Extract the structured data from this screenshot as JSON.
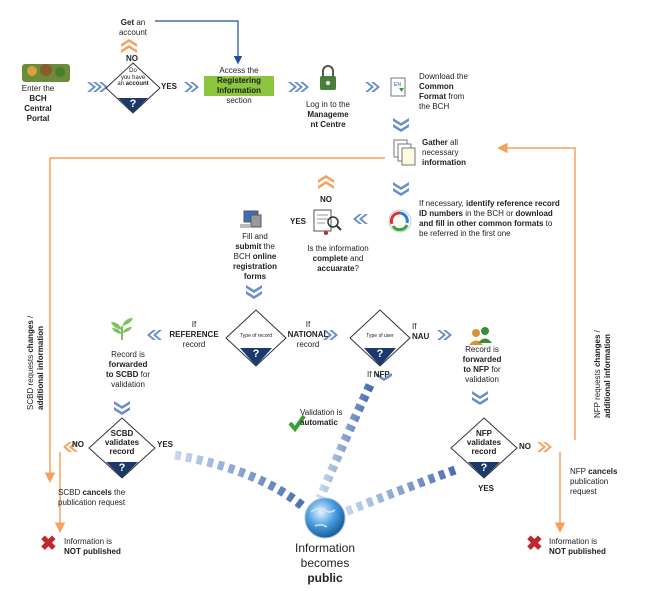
{
  "steps": {
    "enter_portal": {
      "l1": "Enter the",
      "l2": "BCH",
      "l3": "Central",
      "l4": "Portal"
    },
    "get_account": {
      "bold": "Get",
      "rest": " an",
      "l2": "account"
    },
    "have_account": {
      "l1": "Do",
      "l2": "you have",
      "l3": "an ",
      "l3b": "account",
      "q": "?"
    },
    "access_reg": {
      "l1": "Access the",
      "hl": "Registering Information",
      "l3": "section"
    },
    "login": {
      "l1": "Log in to the",
      "l2": "Manageme",
      "l3": "nt Centre"
    },
    "download_cf": {
      "l1": "Download the",
      "l2": "Common",
      "l3": "Format",
      "l3b": " from",
      "l4": "the BCH"
    },
    "gather": {
      "bold1": "Gather",
      "rest1": " all",
      "l2": "necessary",
      "l3": "information"
    },
    "identify": {
      "l1a": "If necessary, ",
      "l1b": "identify reference record",
      "l2": "ID numbers",
      "l2b": " in the BCH or ",
      "l2c": "download",
      "l3": "and fill in other common formats",
      "l3b": " to",
      "l4": "be referred in the first one"
    },
    "complete": {
      "l1": "Is the information",
      "l2": "complete",
      "l2b": " and",
      "l3": "accuarate",
      "l3b": "?"
    },
    "fill_submit": {
      "l1": "Fill and",
      "l2": "submit",
      "l2b": " the",
      "l3": "BCH ",
      "l3b": "online",
      "l4": "registration",
      "l5": "forms"
    },
    "type_record": {
      "label": "Type of record",
      "q": "?"
    },
    "type_user": {
      "label": "Type of user",
      "q": "?"
    },
    "if_reference": {
      "l1": "If",
      "l2": "REFERENCE",
      "l3": "record"
    },
    "if_national": {
      "l1": "If",
      "l2": "NATIONAL",
      "l3": "record"
    },
    "if_nau": {
      "l1": "If",
      "l2": "NAU"
    },
    "if_nfp": {
      "l1": "If ",
      "l2": "NFP"
    },
    "fwd_scbd": {
      "l1": "Record is",
      "l2": "forwarded",
      "l3": "to SCBD",
      "l3b": " for",
      "l4": "validation"
    },
    "fwd_nfp": {
      "l1": "Record is",
      "l2": "forwarded",
      "l3": "to NFP",
      "l3b": " for",
      "l4": "validation"
    },
    "validation_auto": {
      "l1": "Validation is",
      "l2": "automatic"
    },
    "scbd_validates": {
      "l1": "SCBD",
      "l2": "validates",
      "l3": "record",
      "q": "?"
    },
    "nfp_validates": {
      "l1": "NFP",
      "l2": "validates",
      "l3": "record",
      "q": "?"
    },
    "scbd_cancels": {
      "l1a": "SCBD ",
      "l1b": "cancels",
      "l1c": " the",
      "l2": "publication request"
    },
    "nfp_cancels": {
      "l1a": "NFP ",
      "l1b": "cancels",
      "l2": "publication",
      "l3": "request"
    },
    "scbd_requests": {
      "a": "SCBD requests ",
      "b": "changes",
      "c": " /",
      "d": "additional information"
    },
    "nfp_requests": {
      "a": "NFP requests ",
      "b": "changes",
      "c": " /",
      "d": "additional information"
    },
    "not_published_left": {
      "l1": "Information is",
      "l2": "NOT published"
    },
    "not_published_right": {
      "l1": "Information is",
      "l2": "NOT published"
    },
    "public": {
      "l1": "Information",
      "l2": "becomes",
      "l3": "public"
    }
  },
  "labels": {
    "yes": "YES",
    "no": "NO"
  },
  "icons": {
    "x": "✖",
    "check": "✔"
  },
  "colors": {
    "navy": "#1b3a6b",
    "orange": "#f5a25d",
    "arrow_blue": "#6a8fc8",
    "green": "#8cc63f",
    "red": "#c0282d"
  }
}
